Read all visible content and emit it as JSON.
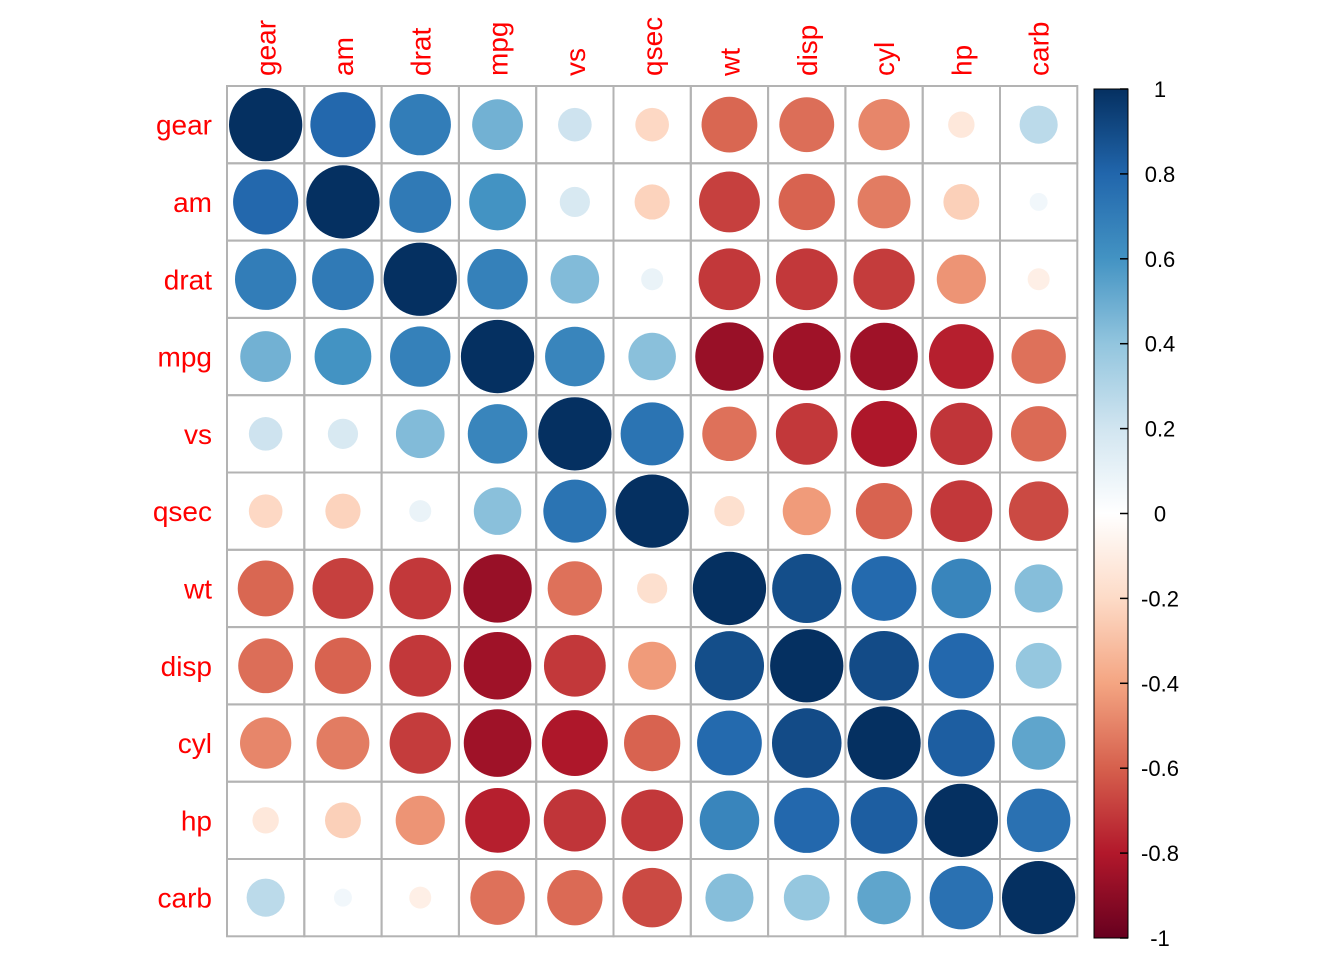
{
  "chart_data": {
    "type": "heatmap",
    "variables": [
      "gear",
      "am",
      "drat",
      "mpg",
      "vs",
      "qsec",
      "wt",
      "disp",
      "cyl",
      "hp",
      "carb"
    ],
    "matrix": [
      [
        1.0,
        0.79,
        0.7,
        0.48,
        0.21,
        -0.21,
        -0.58,
        -0.56,
        -0.49,
        -0.13,
        0.27
      ],
      [
        0.79,
        1.0,
        0.71,
        0.6,
        0.17,
        -0.23,
        -0.69,
        -0.59,
        -0.52,
        -0.24,
        0.06
      ],
      [
        0.7,
        0.71,
        1.0,
        0.68,
        0.44,
        0.09,
        -0.71,
        -0.71,
        -0.7,
        -0.45,
        -0.09
      ],
      [
        0.48,
        0.6,
        0.68,
        1.0,
        0.66,
        0.42,
        -0.87,
        -0.85,
        -0.85,
        -0.78,
        -0.55
      ],
      [
        0.21,
        0.17,
        0.44,
        0.66,
        1.0,
        0.74,
        -0.55,
        -0.71,
        -0.81,
        -0.72,
        -0.57
      ],
      [
        -0.21,
        -0.23,
        0.09,
        0.42,
        0.74,
        1.0,
        -0.17,
        -0.43,
        -0.59,
        -0.71,
        -0.66
      ],
      [
        -0.58,
        -0.69,
        -0.71,
        -0.87,
        -0.55,
        -0.17,
        1.0,
        0.89,
        0.78,
        0.66,
        0.43
      ],
      [
        -0.56,
        -0.59,
        -0.71,
        -0.85,
        -0.71,
        -0.43,
        0.89,
        1.0,
        0.9,
        0.79,
        0.39
      ],
      [
        -0.49,
        -0.52,
        -0.7,
        -0.85,
        -0.81,
        -0.59,
        0.78,
        0.9,
        1.0,
        0.83,
        0.53
      ],
      [
        -0.13,
        -0.24,
        -0.45,
        -0.78,
        -0.72,
        -0.71,
        0.66,
        0.79,
        0.83,
        1.0,
        0.75
      ],
      [
        0.27,
        0.06,
        -0.09,
        -0.55,
        -0.57,
        -0.66,
        0.43,
        0.39,
        0.53,
        0.75,
        1.0
      ]
    ],
    "range": [
      -1,
      1
    ],
    "colorbar": {
      "ticks": [
        "1",
        "0.8",
        "0.6",
        "0.4",
        "0.2",
        "0",
        "-0.2",
        "-0.4",
        "-0.6",
        "-0.8",
        "-1"
      ],
      "tick_values": [
        1,
        0.8,
        0.6,
        0.4,
        0.2,
        0,
        -0.2,
        -0.4,
        -0.6,
        -0.8,
        -1
      ],
      "colors_low_to_high": [
        "#67001F",
        "#B2182B",
        "#D6604D",
        "#F4A582",
        "#FDDBC7",
        "#FFFFFF",
        "#D1E5F0",
        "#92C5DE",
        "#4393C3",
        "#2166AC",
        "#053061"
      ]
    },
    "label_color": "#ff0000",
    "grid": true,
    "legend": "right"
  }
}
